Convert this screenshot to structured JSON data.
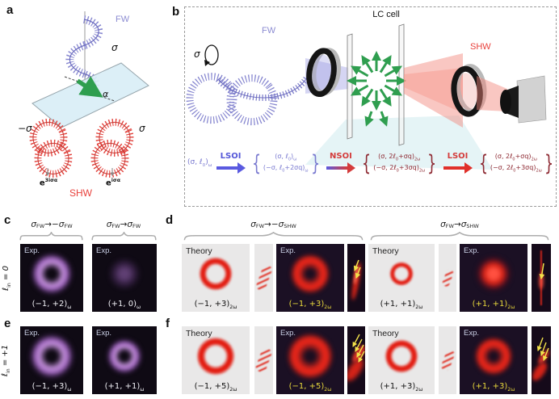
{
  "colors": {
    "fw_purple": "#8c8cd2",
    "shw_red": "#e8413c",
    "lsoi_blue": "#5558d8",
    "nsoi_red": "#d43c3c",
    "eq_purple": "#7a7ad0",
    "eq_dark_red": "#8e2a33",
    "exp_label_yellow": "#e8d83c",
    "lc_green": "#2f9e4f"
  },
  "panel_a": {
    "letter": "a",
    "fw_label": "FW",
    "sigma_fw": "σ",
    "alpha_label": "α",
    "sigma_minus": "−σ",
    "sigma_plus": "σ",
    "phase_left": "e<sup>3iσα</sup>",
    "phase_right": "e<sup>iσα</sup>",
    "shw_label": "SHW"
  },
  "panel_b": {
    "letter": "b",
    "title": "LC cell",
    "sigma_in": "σ",
    "fw_label": "FW",
    "shw_label": "SHW",
    "equation": {
      "input": "(σ, ℓ<sub>0</sub>)<sub>ω</sub>",
      "arrow1_label": "LSOI",
      "group1_top": "(σ, ℓ<sub>0</sub>)<sub>ω</sub>",
      "group1_bottom": "(−σ, ℓ<sub>0</sub>+2σq)<sub>ω</sub>",
      "arrow2_label": "NSOI",
      "group2_top": "(σ, 2ℓ<sub>0</sub>+σq)<sub>2ω</sub>",
      "group2_bottom": "(−σ, 2ℓ<sub>0</sub>+3σq)<sub>2ω</sub>",
      "arrow3_label": "LSOI",
      "group3_top": "(σ, 2ℓ<sub>0</sub>+σq)<sub>2ω</sub>",
      "group3_bottom": "(−σ, 2ℓ<sub>0</sub>+3σq)<sub>2ω</sub>"
    }
  },
  "panel_c": {
    "letter": "c",
    "row_label": "ℓ<sub>in</sub> = 0",
    "headers": [
      "σ<sub>FW</sub>→−σ<sub>FW</sub>",
      "σ<sub>FW</sub>→σ<sub>FW</sub>"
    ],
    "tiles": [
      {
        "tag": "Exp.",
        "mode": "(−1, +2)<sub>ω</sub>"
      },
      {
        "tag": "Exp.",
        "mode": "(+1, 0)<sub>ω</sub>"
      }
    ]
  },
  "panel_d": {
    "letter": "d",
    "headers": [
      "σ<sub>FW</sub>→−σ<sub>SHW</sub>",
      "σ<sub>FW</sub>→σ<sub>SHW</sub>"
    ],
    "groups": [
      {
        "theory_tag": "Theory",
        "theory_mode": "(−1, +3)<sub>2ω</sub>",
        "exp_tag": "Exp.",
        "exp_mode": "(−1, +3)<sub>2ω</sub>"
      },
      {
        "theory_tag": "Theory",
        "theory_mode": "(+1, +1)<sub>2ω</sub>",
        "exp_tag": "Exp.",
        "exp_mode": "(+1, +1)<sub>2ω</sub>"
      }
    ]
  },
  "panel_e": {
    "letter": "e",
    "row_label": "ℓ<sub>in</sub> = +1",
    "tiles": [
      {
        "tag": "Exp.",
        "mode": "(−1, +3)<sub>ω</sub>"
      },
      {
        "tag": "Exp.",
        "mode": "(+1, +1)<sub>ω</sub>"
      }
    ]
  },
  "panel_f": {
    "letter": "f",
    "groups": [
      {
        "theory_tag": "Theory",
        "theory_mode": "(−1, +5)<sub>2ω</sub>",
        "exp_tag": "Exp.",
        "exp_mode": "(−1, +5)<sub>2ω</sub>"
      },
      {
        "theory_tag": "Theory",
        "theory_mode": "(+1, +3)<sub>2ω</sub>",
        "exp_tag": "Exp.",
        "exp_mode": "(+1, +3)<sub>2ω</sub>"
      }
    ]
  }
}
